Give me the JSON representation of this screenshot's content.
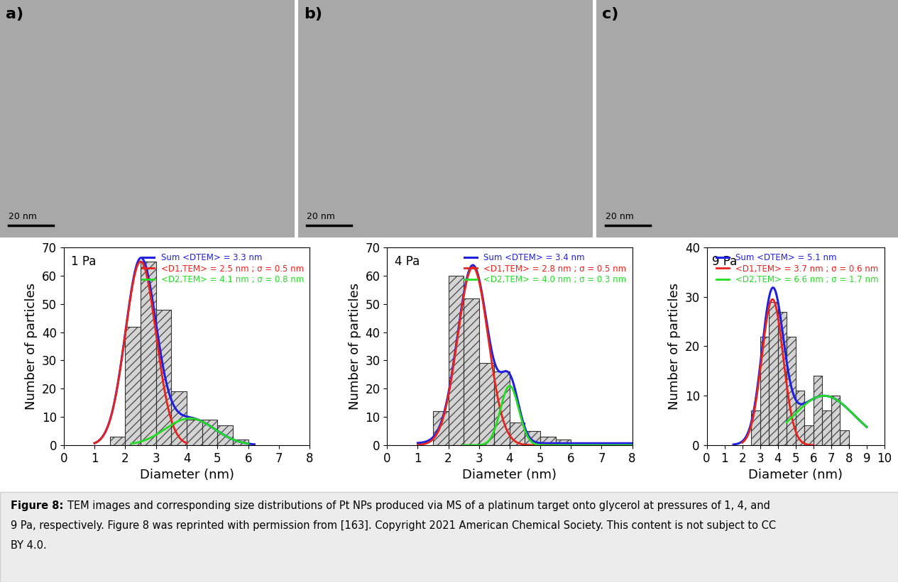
{
  "chart_data": [
    {
      "type": "histogram",
      "title": "1 Pa",
      "xlabel": "Diameter (nm)",
      "ylabel": "Number of particles",
      "bins": [
        1.5,
        2.0,
        2.5,
        3.0,
        3.5,
        4.0,
        4.5,
        5.0,
        5.5,
        6.0
      ],
      "counts": [
        3,
        42,
        65,
        48,
        19,
        9,
        9,
        7,
        2
      ],
      "color": "#d4d4d4",
      "xlim": [
        0,
        8
      ],
      "xticks": [
        0,
        1,
        2,
        3,
        4,
        5,
        6,
        7,
        8
      ],
      "ylim": [
        0,
        70
      ],
      "yticks": [
        0,
        10,
        20,
        30,
        40,
        50,
        60,
        70
      ],
      "legend": "upper right",
      "series": [
        {
          "name": "Sum <DTEM> = 3.3 nm",
          "type": "sum",
          "color": "#2020e0",
          "offset": 0,
          "x_range": [
            1.0,
            6.2
          ]
        },
        {
          "name": "<D1,TEM> = 2.5 nm ; σ = 0.5 nm",
          "type": "gaussian",
          "color": "#e8231c",
          "mean": 2.5,
          "sigma": 0.5,
          "amplitude": 65,
          "x_range": [
            1.0,
            4.0
          ]
        },
        {
          "name": "<D2,TEM> = 4.1 nm ; σ = 0.8 nm",
          "type": "gaussian",
          "color": "#22dd22",
          "mean": 4.1,
          "sigma": 0.8,
          "amplitude": 9.5,
          "x_range": [
            2.2,
            6.0
          ]
        }
      ]
    },
    {
      "type": "histogram",
      "title": "4 Pa",
      "xlabel": "Diameter (nm)",
      "ylabel": "Number of particles",
      "bins": [
        1.5,
        2.0,
        2.5,
        3.0,
        3.5,
        4.0,
        4.5,
        5.0,
        5.5,
        6.0
      ],
      "counts": [
        12,
        60,
        52,
        29,
        26,
        8,
        5,
        3,
        2
      ],
      "color": "#d4d4d4",
      "xlim": [
        0,
        8
      ],
      "xticks": [
        0,
        1,
        2,
        3,
        4,
        5,
        6,
        7,
        8
      ],
      "ylim": [
        0,
        70
      ],
      "yticks": [
        0,
        10,
        20,
        30,
        40,
        50,
        60,
        70
      ],
      "legend": "upper right",
      "series": [
        {
          "name": "Sum <DTEM> = 3.4 nm",
          "type": "sum",
          "color": "#2020e0",
          "offset": 0.7,
          "x_range": [
            1.0,
            8.0
          ]
        },
        {
          "name": "<D1,TEM> = 2.8 nm ; σ = 0.5 nm",
          "type": "gaussian",
          "color": "#e8231c",
          "mean": 2.8,
          "sigma": 0.5,
          "amplitude": 63,
          "x_range": [
            1.0,
            5.5
          ]
        },
        {
          "name": "<D2,TEM> = 4.0 nm ; σ = 0.3 nm",
          "type": "gaussian",
          "color": "#22dd22",
          "mean": 4.0,
          "sigma": 0.3,
          "amplitude": 21,
          "x_range": [
            2.5,
            8.0
          ]
        }
      ]
    },
    {
      "type": "histogram",
      "title": "9 Pa",
      "xlabel": "Diameter (nm)",
      "ylabel": "Number of particles",
      "bins": [
        2.5,
        3.0,
        3.5,
        4.0,
        4.5,
        5.0,
        5.5,
        6.0,
        6.5,
        7.0,
        7.5,
        8.0
      ],
      "counts": [
        7,
        22,
        29,
        27,
        22,
        11,
        4,
        14,
        7,
        10,
        3
      ],
      "color": "#d4d4d4",
      "xlim": [
        0,
        10
      ],
      "xticks": [
        0,
        1,
        2,
        3,
        4,
        5,
        6,
        7,
        8,
        9,
        10
      ],
      "ylim": [
        0,
        40
      ],
      "yticks": [
        0,
        10,
        20,
        30,
        40
      ],
      "legend": "upper right",
      "series": [
        {
          "name": "Sum <DTEM> = 5.1 nm",
          "type": "sum",
          "color": "#2020e0",
          "offset": 0,
          "x_range": [
            1.5,
            9.0
          ]
        },
        {
          "name": "<D1,TEM> = 3.7 nm ; σ = 0.6 nm",
          "type": "gaussian",
          "color": "#e8231c",
          "mean": 3.7,
          "sigma": 0.6,
          "amplitude": 29.5,
          "x_range": [
            2.0,
            6.0
          ]
        },
        {
          "name": "<D2,TEM> = 6.6 nm ; σ = 1.7 nm",
          "type": "gaussian",
          "color": "#22dd22",
          "mean": 6.6,
          "sigma": 1.7,
          "amplitude": 10,
          "x_range": [
            4.5,
            9.0
          ]
        }
      ]
    }
  ],
  "images": [
    {
      "label": "a)",
      "scale_bar": "20 nm"
    },
    {
      "label": "b)",
      "scale_bar": "20 nm"
    },
    {
      "label": "c)",
      "scale_bar": "20 nm"
    }
  ],
  "caption": {
    "label": "Figure 8:",
    "lines": [
      "TEM images and corresponding size distributions of Pt NPs produced via MS of a platinum target onto glycerol at pressures of 1, 4, and",
      "9 Pa, respectively. Figure 8 was reprinted with permission from [163]. Copyright 2021 American Chemical Society. This content is not subject to CC",
      "BY 4.0."
    ]
  }
}
